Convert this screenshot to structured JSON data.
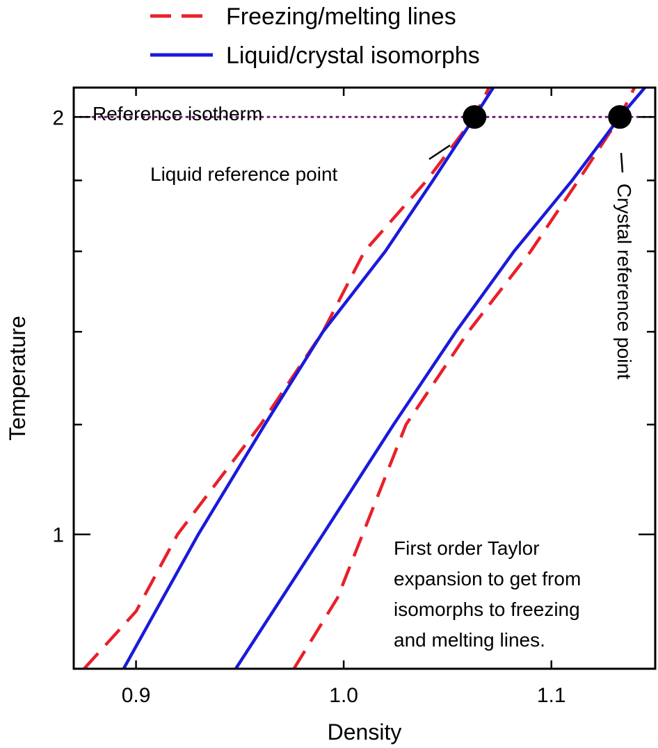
{
  "chart_data": {
    "type": "line",
    "xlabel": "Density",
    "ylabel": "Temperature",
    "xlim": [
      0.87,
      1.15
    ],
    "ylim": [
      0.8,
      2.1
    ],
    "x_ticks": [
      {
        "value": 0.9,
        "label": "0.9"
      },
      {
        "value": 1.0,
        "label": "1.0"
      },
      {
        "value": 1.1,
        "label": "1.1"
      }
    ],
    "y_ticks": [
      {
        "value": 1,
        "label": "1"
      },
      {
        "value": 2,
        "label": "2"
      }
    ],
    "y_minor_ticks": [
      1.2,
      1.4,
      1.6,
      1.8
    ],
    "log_y": true,
    "grid": false,
    "legend": {
      "position": "top",
      "entries": [
        {
          "label": "Freezing/melting lines",
          "color": "#e8202a",
          "style": "dashed"
        },
        {
          "label": "Liquid/crystal isomorphs",
          "color": "#1a1adb",
          "style": "solid"
        }
      ]
    },
    "series": [
      {
        "group": "freezing-melting",
        "color": "#e8202a",
        "style": "dashed",
        "points": [
          [
            0.875,
            0.8
          ],
          [
            0.9,
            0.88
          ],
          [
            0.92,
            1.0
          ],
          [
            0.96,
            1.2
          ],
          [
            0.99,
            1.4
          ],
          [
            1.01,
            1.6
          ],
          [
            1.04,
            1.8
          ],
          [
            1.063,
            2.0
          ],
          [
            1.07,
            2.1
          ]
        ]
      },
      {
        "group": "freezing-melting",
        "color": "#e8202a",
        "style": "dashed",
        "points": [
          [
            0.976,
            0.8
          ],
          [
            0.997,
            0.9
          ],
          [
            1.03,
            1.2
          ],
          [
            1.06,
            1.4
          ],
          [
            1.09,
            1.6
          ],
          [
            1.113,
            1.8
          ],
          [
            1.133,
            2.0
          ],
          [
            1.14,
            2.1
          ]
        ]
      },
      {
        "group": "isomorphs",
        "color": "#1a1adb",
        "style": "solid",
        "points": [
          [
            0.894,
            0.8
          ],
          [
            0.93,
            1.0
          ],
          [
            0.962,
            1.2
          ],
          [
            0.99,
            1.4
          ],
          [
            1.02,
            1.6
          ],
          [
            1.043,
            1.8
          ],
          [
            1.063,
            2.0
          ],
          [
            1.072,
            2.1
          ]
        ]
      },
      {
        "group": "isomorphs",
        "color": "#1a1adb",
        "style": "solid",
        "points": [
          [
            0.948,
            0.8
          ],
          [
            0.99,
            1.0
          ],
          [
            1.024,
            1.2
          ],
          [
            1.054,
            1.4
          ],
          [
            1.082,
            1.6
          ],
          [
            1.11,
            1.8
          ],
          [
            1.133,
            2.0
          ],
          [
            1.145,
            2.1
          ]
        ]
      }
    ],
    "reference_isotherm": {
      "y": 2.0,
      "label": "Reference isotherm",
      "color": "#6b1a6b"
    },
    "reference_points": [
      {
        "x": 1.063,
        "y": 2.0,
        "label": "Liquid reference point"
      },
      {
        "x": 1.133,
        "y": 2.0,
        "label": "Crystal reference point"
      }
    ],
    "annotation": [
      "First order Taylor",
      "expansion to get from",
      "isomorphs to freezing",
      "and melting lines."
    ]
  }
}
